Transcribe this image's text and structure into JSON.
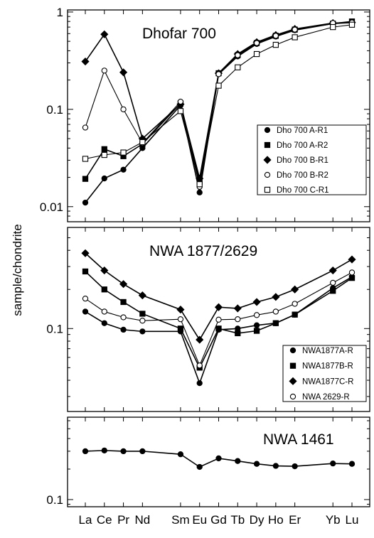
{
  "chart_data": {
    "type": "line",
    "ylabel": "sample/chondrite",
    "categories": [
      "La",
      "Ce",
      "Pr",
      "Nd",
      "Sm",
      "Eu",
      "Gd",
      "Tb",
      "Dy",
      "Ho",
      "Er",
      "Yb",
      "Lu"
    ],
    "category_positions": [
      0,
      1,
      2,
      3,
      5,
      6,
      7,
      8,
      9,
      10,
      11,
      13,
      14
    ],
    "panels": [
      {
        "title": "Dhofar 700",
        "yscale": "log",
        "ylim": [
          0.007,
          1.05
        ],
        "yticks": [
          0.01,
          0.1,
          1
        ],
        "ytick_labels": [
          "0.01",
          "0.1",
          "1"
        ],
        "legend_position": "right-center",
        "series": [
          {
            "name": "Dho 700 A-R1",
            "marker": "circle-filled",
            "values": [
              0.011,
              0.0195,
              0.024,
              0.04,
              0.11,
              0.014,
              0.23,
              0.35,
              0.47,
              0.56,
              0.65,
              0.76,
              0.78
            ]
          },
          {
            "name": "Dho 700 A-R2",
            "marker": "square-filled",
            "values": [
              0.0193,
              0.039,
              0.033,
              0.044,
              0.115,
              0.018,
              0.235,
              0.36,
              0.48,
              0.57,
              0.66,
              0.76,
              0.8
            ]
          },
          {
            "name": "Dho 700 B-R1",
            "marker": "diamond-filled",
            "values": [
              0.31,
              0.59,
              0.24,
              0.05,
              0.113,
              0.0195,
              0.235,
              0.37,
              0.49,
              0.58,
              0.67,
              0.77,
              0.78
            ]
          },
          {
            "name": "Dho 700 B-R2",
            "marker": "circle-open",
            "values": [
              0.065,
              0.25,
              0.1,
              0.045,
              0.12,
              0.016,
              0.23,
              0.36,
              0.48,
              0.57,
              0.66,
              0.77,
              0.78
            ]
          },
          {
            "name": "Dho 700 C-R1",
            "marker": "square-open",
            "values": [
              0.031,
              0.034,
              0.036,
              0.046,
              0.096,
              0.017,
              0.175,
              0.27,
              0.37,
              0.46,
              0.55,
              0.7,
              0.74
            ]
          }
        ]
      },
      {
        "title": "NWA 1877/2629",
        "yscale": "log",
        "ylim": [
          0.023,
          0.6
        ],
        "yticks": [
          0.1
        ],
        "ytick_labels": [
          "0.1"
        ],
        "legend_position": "bottom-right",
        "series": [
          {
            "name": "NWA1877A-R",
            "marker": "circle-filled",
            "values": [
              0.135,
              0.11,
              0.098,
              0.095,
              0.095,
              0.038,
              0.098,
              0.1,
              0.106,
              0.11,
              0.128,
              0.205,
              0.25
            ]
          },
          {
            "name": "NWA1877B-R",
            "marker": "square-filled",
            "values": [
              0.275,
              0.2,
              0.16,
              0.13,
              0.1,
              0.05,
              0.1,
              0.092,
              0.096,
              0.11,
              0.128,
              0.195,
              0.245
            ]
          },
          {
            "name": "NWA1877C-R",
            "marker": "diamond-filled",
            "values": [
              0.38,
              0.28,
              0.22,
              0.18,
              0.14,
              0.082,
              0.146,
              0.143,
              0.16,
              0.175,
              0.2,
              0.28,
              0.34
            ]
          },
          {
            "name": "NWA 2629-R",
            "marker": "circle-open",
            "values": [
              0.17,
              0.135,
              0.122,
              0.115,
              0.118,
              0.052,
              0.117,
              0.118,
              0.127,
              0.135,
              0.155,
              0.225,
              0.27
            ]
          }
        ]
      },
      {
        "title": "NWA 1461",
        "yscale": "log",
        "ylim": [
          0.085,
          0.65
        ],
        "yticks": [
          0.1
        ],
        "ytick_labels": [
          "0.1"
        ],
        "legend_position": "none",
        "series": [
          {
            "name": "",
            "marker": "circle-filled",
            "values": [
              0.3,
              0.305,
              0.3,
              0.3,
              0.28,
              0.21,
              0.255,
              0.24,
              0.225,
              0.215,
              0.213,
              0.227,
              0.225
            ]
          }
        ]
      }
    ]
  }
}
